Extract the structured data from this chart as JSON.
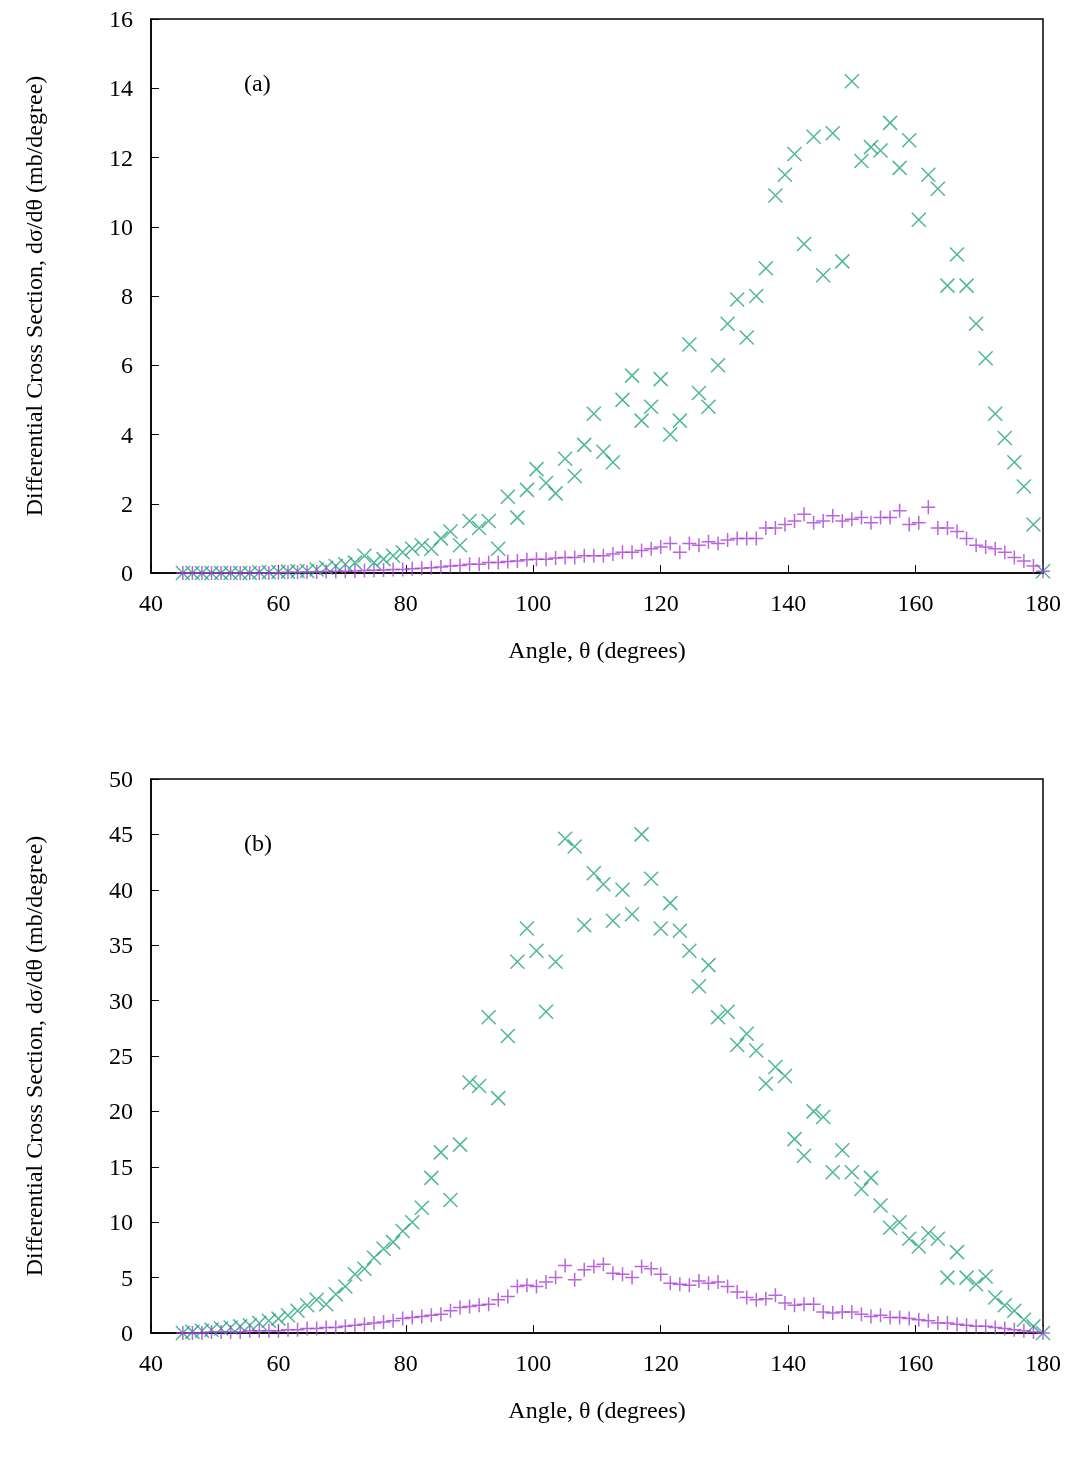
{
  "chart_data": [
    {
      "type": "scatter",
      "xlabel": "Angle, θ (degrees)",
      "ylabel": "Differential Cross Section, dσ/dθ (mb/degree)",
      "annotations": [
        "(a)"
      ],
      "xlim": [
        40,
        180
      ],
      "xticks": [
        40,
        60,
        80,
        100,
        120,
        140,
        160,
        180
      ],
      "ylim": [
        0,
        16
      ],
      "yticks": [
        0,
        2,
        4,
        6,
        8,
        10,
        12,
        14,
        16
      ],
      "grid": false,
      "x": [
        45,
        46.5,
        48,
        49.5,
        51,
        52.5,
        54,
        55.5,
        57,
        58.5,
        60,
        61.5,
        63,
        64.5,
        66,
        67.5,
        69,
        70.5,
        72,
        73.5,
        75,
        76.5,
        78,
        79.5,
        81,
        82.5,
        84,
        85.5,
        87,
        88.5,
        90,
        91.5,
        93,
        94.5,
        96,
        97.5,
        99,
        100.5,
        102,
        103.5,
        105,
        106.5,
        108,
        109.5,
        111,
        112.5,
        114,
        115.5,
        117,
        118.5,
        120,
        121.5,
        123,
        124.5,
        126,
        127.5,
        129,
        130.5,
        132,
        133.5,
        135,
        136.5,
        138,
        139.5,
        141,
        142.5,
        144,
        145.5,
        147,
        148.5,
        150,
        151.5,
        153,
        154.5,
        156,
        157.5,
        159,
        160.5,
        162,
        163.5,
        165,
        166.5,
        168,
        169.5,
        171,
        172.5,
        174,
        175.5,
        177,
        178.5,
        180
      ],
      "series": [
        {
          "color": "#24a57e",
          "marker": "cross",
          "values": [
            0,
            0,
            0,
            0,
            0,
            0,
            0,
            0,
            0.02,
            0.02,
            0.03,
            0.04,
            0.05,
            0.06,
            0.1,
            0.15,
            0.2,
            0.25,
            0.3,
            0.5,
            0.3,
            0.4,
            0.5,
            0.6,
            0.7,
            0.8,
            0.7,
            1.0,
            1.2,
            0.8,
            1.5,
            1.3,
            1.5,
            0.7,
            2.2,
            1.6,
            2.4,
            3.0,
            2.6,
            2.3,
            3.3,
            2.8,
            3.7,
            4.6,
            3.5,
            3.2,
            5.0,
            5.7,
            4.4,
            4.8,
            5.6,
            4.0,
            4.4,
            6.6,
            5.2,
            4.8,
            6.0,
            7.2,
            7.9,
            6.8,
            8.0,
            8.8,
            10.9,
            11.5,
            12.1,
            9.5,
            12.6,
            8.6,
            12.7,
            9.0,
            14.2,
            11.9,
            12.3,
            12.2,
            13.0,
            11.7,
            12.5,
            10.2,
            11.5,
            11.1,
            8.3,
            9.2,
            8.3,
            7.2,
            6.2,
            4.6,
            3.9,
            3.2,
            2.5,
            1.4,
            0.05
          ]
        },
        {
          "color": "#a83fd6",
          "marker": "plus",
          "values": [
            0,
            0,
            0,
            0,
            0,
            0,
            0,
            0,
            0,
            0,
            0.01,
            0.02,
            0.02,
            0.03,
            0.03,
            0.04,
            0.05,
            0.05,
            0.06,
            0.07,
            0.08,
            0.09,
            0.1,
            0.1,
            0.12,
            0.14,
            0.15,
            0.17,
            0.2,
            0.22,
            0.25,
            0.25,
            0.3,
            0.3,
            0.33,
            0.35,
            0.38,
            0.4,
            0.4,
            0.43,
            0.45,
            0.45,
            0.5,
            0.5,
            0.5,
            0.55,
            0.6,
            0.6,
            0.65,
            0.7,
            0.75,
            0.85,
            0.6,
            0.85,
            0.8,
            0.9,
            0.85,
            0.95,
            1.0,
            1.0,
            1.0,
            1.3,
            1.3,
            1.4,
            1.5,
            1.7,
            1.45,
            1.5,
            1.65,
            1.5,
            1.55,
            1.6,
            1.45,
            1.6,
            1.6,
            1.8,
            1.4,
            1.45,
            1.9,
            1.3,
            1.3,
            1.2,
            1.0,
            0.8,
            0.75,
            0.7,
            0.6,
            0.45,
            0.35,
            0.2,
            0.05
          ]
        }
      ]
    },
    {
      "type": "scatter",
      "xlabel": "Angle, θ (degrees)",
      "ylabel": "Differential Cross Section, dσ/dθ (mb/degree)",
      "annotations": [
        "(b)"
      ],
      "xlim": [
        40,
        180
      ],
      "xticks": [
        40,
        60,
        80,
        100,
        120,
        140,
        160,
        180
      ],
      "ylim": [
        0,
        50
      ],
      "yticks": [
        0,
        5,
        10,
        15,
        20,
        25,
        30,
        35,
        40,
        45,
        50
      ],
      "grid": false,
      "x": [
        45,
        46.5,
        48,
        49.5,
        51,
        52.5,
        54,
        55.5,
        57,
        58.5,
        60,
        61.5,
        63,
        64.5,
        66,
        67.5,
        69,
        70.5,
        72,
        73.5,
        75,
        76.5,
        78,
        79.5,
        81,
        82.5,
        84,
        85.5,
        87,
        88.5,
        90,
        91.5,
        93,
        94.5,
        96,
        97.5,
        99,
        100.5,
        102,
        103.5,
        105,
        106.5,
        108,
        109.5,
        111,
        112.5,
        114,
        115.5,
        117,
        118.5,
        120,
        121.5,
        123,
        124.5,
        126,
        127.5,
        129,
        130.5,
        132,
        133.5,
        135,
        136.5,
        138,
        139.5,
        141,
        142.5,
        144,
        145.5,
        147,
        148.5,
        150,
        151.5,
        153,
        154.5,
        156,
        157.5,
        159,
        160.5,
        162,
        163.5,
        165,
        166.5,
        168,
        169.5,
        171,
        172.5,
        174,
        175.5,
        177,
        178.5,
        180
      ],
      "series": [
        {
          "color": "#24a57e",
          "marker": "cross",
          "values": [
            0,
            0.1,
            0.2,
            0.3,
            0.4,
            0.5,
            0.6,
            0.7,
            0.9,
            1.1,
            1.3,
            1.6,
            2.0,
            2.5,
            3.0,
            2.6,
            3.5,
            4.2,
            5.3,
            5.8,
            6.8,
            7.6,
            8.2,
            9.2,
            10.0,
            11.3,
            14.0,
            16.3,
            12.0,
            17.0,
            22.6,
            22.3,
            28.5,
            21.2,
            26.8,
            33.5,
            36.5,
            34.5,
            29.0,
            33.5,
            44.6,
            43.9,
            36.8,
            41.5,
            40.5,
            37.2,
            40.0,
            37.8,
            45.0,
            41.0,
            36.5,
            38.8,
            36.3,
            34.5,
            31.3,
            33.2,
            28.5,
            29.0,
            26.0,
            27.0,
            25.5,
            22.5,
            24.0,
            23.2,
            17.5,
            16.0,
            20.0,
            19.5,
            14.5,
            16.5,
            14.5,
            13.0,
            14.0,
            11.5,
            9.5,
            10.0,
            8.5,
            7.8,
            9.0,
            8.5,
            5.0,
            7.3,
            5.0,
            4.4,
            5.1,
            3.2,
            2.5,
            2.0,
            1.2,
            0.6,
            0
          ]
        },
        {
          "color": "#a83fd6",
          "marker": "plus",
          "values": [
            0,
            0,
            0,
            0.1,
            0.1,
            0.1,
            0.1,
            0.2,
            0.2,
            0.2,
            0.2,
            0.3,
            0.3,
            0.4,
            0.4,
            0.5,
            0.5,
            0.6,
            0.7,
            0.8,
            0.9,
            1.0,
            1.1,
            1.3,
            1.4,
            1.5,
            1.6,
            1.7,
            2.0,
            2.3,
            2.4,
            2.5,
            2.6,
            3.0,
            3.3,
            4.2,
            4.3,
            4.2,
            4.6,
            5.0,
            6.1,
            4.8,
            5.7,
            6.0,
            6.2,
            5.4,
            5.3,
            5.0,
            6.0,
            5.8,
            5.3,
            4.5,
            4.4,
            4.3,
            4.7,
            4.5,
            4.6,
            4.2,
            3.7,
            3.2,
            3.0,
            3.1,
            3.4,
            2.7,
            2.5,
            2.6,
            2.6,
            1.9,
            1.8,
            1.9,
            1.9,
            1.7,
            1.5,
            1.6,
            1.4,
            1.4,
            1.3,
            1.2,
            1.1,
            0.9,
            0.9,
            0.8,
            0.7,
            0.6,
            0.6,
            0.5,
            0.4,
            0.3,
            0.2,
            0.1,
            0
          ]
        }
      ]
    }
  ]
}
